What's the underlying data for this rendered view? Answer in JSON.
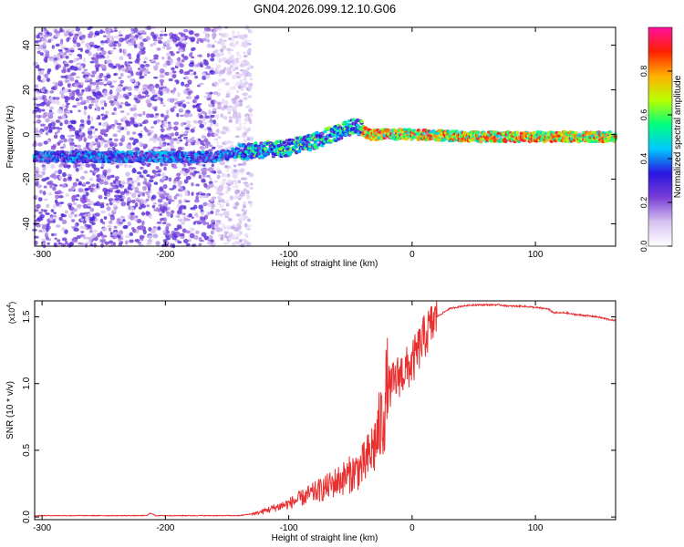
{
  "figure": {
    "title": "GN04.2026.099.12.10.G06"
  },
  "chart_data": [
    {
      "type": "heatmap",
      "title": "GN04.2026.099.12.10.G06",
      "xlabel": "Height of straight line (km)",
      "ylabel": "Frequency (Hz)",
      "xlim": [
        -306,
        165
      ],
      "ylim": [
        -50,
        48
      ],
      "x_ticks": [
        -300,
        -200,
        -100,
        0,
        100
      ],
      "x_tick_labels": [
        "-300",
        "-200",
        "-100",
        "0",
        "100"
      ],
      "y_ticks": [
        -40,
        -20,
        0,
        20,
        40
      ],
      "y_tick_labels": [
        "-40",
        "-20",
        "0",
        "20",
        "40"
      ],
      "colorbar": {
        "label": "Normalized spectral amplitude",
        "range": [
          0,
          1
        ],
        "ticks": [
          0.0,
          0.2,
          0.4,
          0.6,
          0.8
        ],
        "tick_labels": [
          "0.0",
          "0.2",
          "0.4",
          "0.6",
          "0.8"
        ],
        "colormap": [
          "#ffffff",
          "#d6c2f0",
          "#7a3fd6",
          "#2a16e0",
          "#00c8ff",
          "#00ff80",
          "#b8ff00",
          "#ffb000",
          "#ff2000",
          "#ff10a0"
        ]
      },
      "ridge": {
        "description_points_x": [
          -300,
          -230,
          -200,
          -160,
          -140,
          -120,
          -100,
          -80,
          -60,
          -45,
          -35,
          -20,
          0,
          50,
          100,
          165
        ],
        "description_points_y": [
          -10,
          -10,
          -10,
          -10,
          -8,
          -7,
          -6,
          -3,
          1,
          4,
          0,
          0,
          0,
          -1,
          -1,
          -1
        ]
      },
      "noise_region_x": [
        -306,
        -140
      ]
    },
    {
      "type": "line",
      "title": "",
      "xlabel": "Height of straight line (km)",
      "ylabel": "SNR (10 * v/v)",
      "y_scale_label": "(x10",
      "y_scale_exponent": "4",
      "y_scale_close": ")",
      "xlim": [
        -306,
        165
      ],
      "ylim": [
        -0.02,
        1.62
      ],
      "x_ticks": [
        -300,
        -200,
        -100,
        0,
        100
      ],
      "x_tick_labels": [
        "-300",
        "-200",
        "-100",
        "0",
        "100"
      ],
      "y_ticks": [
        0.0,
        0.5,
        1.0,
        1.5
      ],
      "y_tick_labels": [
        "0.0",
        "0.5",
        "1.0",
        "1.5"
      ],
      "series": [
        {
          "name": "SNR",
          "color": "#e83030",
          "x": [
            -306,
            -250,
            -215,
            -212,
            -208,
            -180,
            -140,
            -125,
            -115,
            -100,
            -90,
            -80,
            -70,
            -60,
            -50,
            -40,
            -35,
            -30,
            -25,
            -22,
            -20,
            -15,
            -10,
            -5,
            0,
            10,
            20,
            30,
            40,
            50,
            60,
            70,
            80,
            90,
            100,
            110,
            115,
            125,
            130,
            140,
            150,
            165
          ],
          "y": [
            0.01,
            0.01,
            0.01,
            0.03,
            0.01,
            0.01,
            0.01,
            0.03,
            0.06,
            0.1,
            0.14,
            0.18,
            0.22,
            0.27,
            0.32,
            0.38,
            0.45,
            0.55,
            0.7,
            0.85,
            0.95,
            1.0,
            1.07,
            1.1,
            1.15,
            1.35,
            1.5,
            1.56,
            1.58,
            1.59,
            1.59,
            1.59,
            1.58,
            1.58,
            1.57,
            1.56,
            1.53,
            1.53,
            1.52,
            1.51,
            1.5,
            1.47
          ]
        }
      ]
    }
  ]
}
